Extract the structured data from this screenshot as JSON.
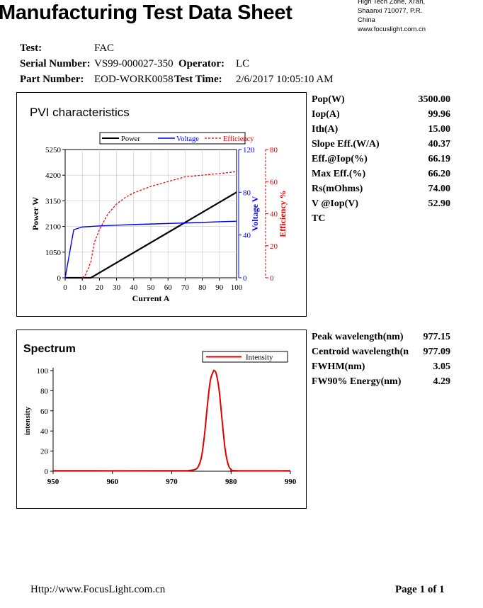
{
  "header": {
    "title": "Manufacturing Test Data Sheet",
    "address_lines": [
      "High Tech Zone, Xi'an,",
      "Shaanxi 710077, P.R.",
      "China",
      "www.focuslight.com.cn"
    ]
  },
  "info": {
    "test_label": "Test:",
    "test_value": "FAC",
    "serial_label": "Serial Number:",
    "serial_value": "VS99-000027-350",
    "operator_label": "Operator:",
    "operator_value": "LC",
    "part_label": "Part Number:",
    "part_value": "EOD-WORK0058",
    "time_label": "Test Time:",
    "time_value": "2/6/2017  10:05:10 AM"
  },
  "pvi": {
    "title": "PVI characteristics",
    "specs": [
      {
        "label": "Pop(W)",
        "value": "3500.00"
      },
      {
        "label": "Iop(A)",
        "value": "99.96"
      },
      {
        "label": "Ith(A)",
        "value": "15.00"
      },
      {
        "label": "Slope Eff.(W/A)",
        "value": "40.37"
      },
      {
        "label": "Eff.@Iop(%)",
        "value": "66.19"
      },
      {
        "label": "Max Eff.(%)",
        "value": "66.20"
      },
      {
        "label": "Rs(mOhms)",
        "value": "74.00"
      },
      {
        "label": "V @Iop(V)",
        "value": "52.90"
      },
      {
        "label": "TC",
        "value": ""
      }
    ]
  },
  "spectrum": {
    "title": "Spectrum",
    "specs": [
      {
        "label": "Peak wavelength(nm)",
        "value": "977.15"
      },
      {
        "label": "Centroid wavelength(n",
        "value": "977.09"
      },
      {
        "label": "FWHM(nm)",
        "value": "3.05"
      },
      {
        "label": "FW90% Energy(nm)",
        "value": "4.29"
      }
    ]
  },
  "footer": {
    "url": "Http://www.FocusLight.com.cn",
    "page": "Page 1 of 1"
  },
  "chart_data": [
    {
      "type": "line",
      "xlabel": "Current A",
      "ylabel": "Power W",
      "y2label": "Voltage V",
      "y3label": "Efficiency %",
      "xlim": [
        0,
        100
      ],
      "ylim": [
        0,
        5250
      ],
      "y2lim": [
        0,
        120
      ],
      "y3lim": [
        0,
        80
      ],
      "x_ticks": [
        "0",
        "10",
        "20",
        "30",
        "40",
        "50",
        "60",
        "70",
        "80",
        "90",
        "100"
      ],
      "y_ticks": [
        "0",
        "1050",
        "2100",
        "3150",
        "4200",
        "5250"
      ],
      "y2_ticks": [
        "0",
        "40",
        "80",
        "120"
      ],
      "y3_ticks": [
        "0",
        "20",
        "40",
        "60",
        "80"
      ],
      "legend": [
        "Power",
        "Voltage",
        "Efficiency"
      ],
      "legend_position": "top",
      "colors": {
        "power": "#000000",
        "voltage": "#0000ff",
        "efficiency": "#e00000"
      },
      "series": [
        {
          "name": "Power",
          "x": [
            0,
            15,
            100
          ],
          "values": [
            0,
            0,
            3500
          ]
        },
        {
          "name": "Voltage",
          "x": [
            0,
            5,
            10,
            20,
            30,
            40,
            50,
            60,
            70,
            80,
            90,
            100
          ],
          "values": [
            0,
            45,
            47.5,
            48.5,
            49.2,
            49.8,
            50.3,
            50.8,
            51.3,
            51.8,
            52.4,
            52.9
          ]
        },
        {
          "name": "Efficiency",
          "x": [
            10,
            12,
            15,
            17,
            20,
            25,
            30,
            35,
            40,
            50,
            60,
            70,
            80,
            90,
            100
          ],
          "values": [
            0,
            2,
            10,
            22,
            30,
            40,
            46,
            50,
            53,
            57,
            60,
            63,
            64,
            65,
            66.2
          ]
        }
      ]
    },
    {
      "type": "line",
      "ylabel": "intensity",
      "xlim": [
        950,
        990
      ],
      "ylim": [
        0,
        100
      ],
      "x_ticks": [
        "950",
        "960",
        "970",
        "980",
        "990"
      ],
      "y_ticks": [
        "0",
        "20",
        "40",
        "60",
        "80",
        "100"
      ],
      "legend": [
        "Intensity"
      ],
      "legend_position": "top-right",
      "colors": {
        "intensity": "#e00000"
      },
      "series": [
        {
          "name": "Intensity",
          "x": [
            950,
            970,
            973,
            974,
            974.5,
            975,
            975.5,
            976,
            976.5,
            977,
            977.15,
            977.5,
            978,
            978.5,
            979,
            979.5,
            980,
            981,
            990
          ],
          "values": [
            0.5,
            0.5,
            0.8,
            2,
            5,
            14,
            35,
            65,
            90,
            99,
            100,
            97,
            80,
            50,
            22,
            7,
            2,
            0.5,
            0.5
          ]
        }
      ]
    }
  ]
}
